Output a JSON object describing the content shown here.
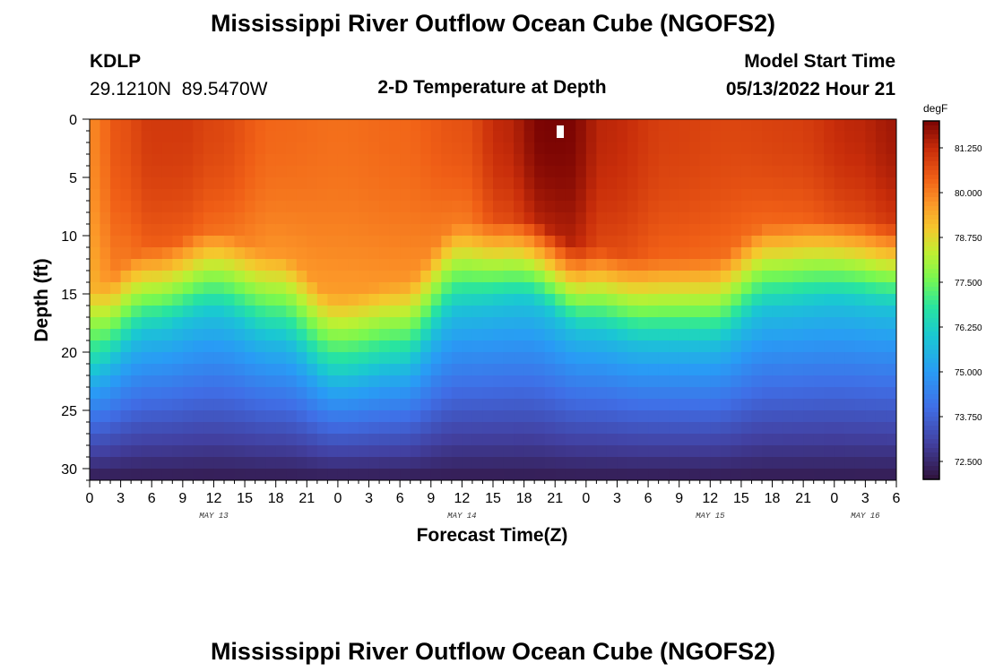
{
  "header": {
    "title": "Mississippi River Outflow Ocean Cube (NGOFS2)",
    "station_id": "KDLP",
    "station_coords": "29.1210N  89.5470W",
    "model_start_label": "Model Start Time",
    "model_start_value": "05/13/2022 Hour 21"
  },
  "footer": {
    "title": "Mississippi River Outflow Ocean Cube (NGOFS2)"
  },
  "chart_data": {
    "type": "heatmap",
    "title": "2-D Temperature at Depth",
    "xlabel": "Forecast Time(Z)",
    "ylabel": "Depth (ft)",
    "x_range_hours": [
      0,
      78
    ],
    "x_start_hour_of_day": 0,
    "y_range_ft": [
      0,
      31
    ],
    "y_ticks": [
      0,
      5,
      10,
      15,
      20,
      25,
      30
    ],
    "x_tick_labels": [
      "0",
      "3",
      "6",
      "9",
      "12",
      "15",
      "18",
      "21",
      "0",
      "3",
      "6",
      "9",
      "12",
      "15",
      "18",
      "21",
      "0",
      "3",
      "6",
      "9",
      "12",
      "15",
      "18",
      "21",
      "0",
      "3",
      "6"
    ],
    "date_labels": [
      {
        "label": "MAY 13",
        "hour": 12
      },
      {
        "label": "MAY 14",
        "hour": 36
      },
      {
        "label": "MAY 15",
        "hour": 60
      },
      {
        "label": "MAY 16",
        "hour": 75
      }
    ],
    "colorbar": {
      "unit": "degF",
      "min": 72.0,
      "max": 82.0,
      "ticks": [
        "72.500",
        "73.750",
        "75.000",
        "76.250",
        "77.500",
        "78.750",
        "80.000",
        "81.250"
      ]
    },
    "model_start_marker_hour": 45.5,
    "thermocline": {
      "hours": [
        0,
        6,
        12,
        18,
        24,
        30,
        36,
        42,
        48,
        54,
        60,
        66,
        72,
        78
      ],
      "depth_ft": [
        17.5,
        14.0,
        12.5,
        14.5,
        18.0,
        17.0,
        12.0,
        11.5,
        14.0,
        15.0,
        15.0,
        12.0,
        11.5,
        12.0
      ]
    },
    "surface_temp": {
      "hours": [
        0,
        3,
        6,
        9,
        12,
        18,
        24,
        30,
        36,
        40,
        44,
        46,
        50,
        56,
        62,
        68,
        74,
        78
      ],
      "temp_degF": [
        79.9,
        80.6,
        81.0,
        81.0,
        80.8,
        80.3,
        80.2,
        80.3,
        80.6,
        81.3,
        82.0,
        82.0,
        81.3,
        80.9,
        80.8,
        80.9,
        81.3,
        81.6
      ]
    },
    "bottom_temp_degF": 72.2
  }
}
